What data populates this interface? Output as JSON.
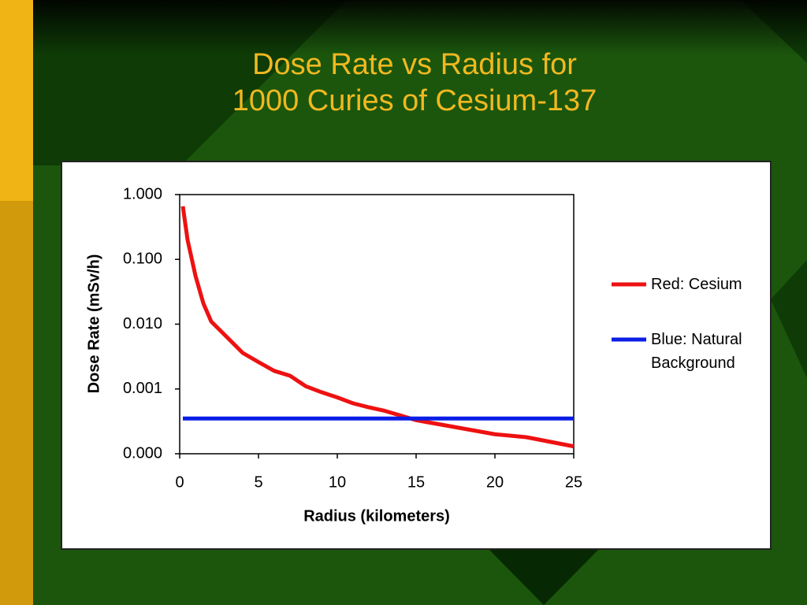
{
  "chart_data": {
    "type": "line",
    "title": [
      "Dose Rate vs Radius for",
      "1000 Curies of Cesium-137"
    ],
    "x_label": "Radius (kilometers)",
    "y_label": "Dose Rate (mSv/h)",
    "x": [
      0.2,
      0.5,
      1,
      1.5,
      2,
      3,
      4,
      5,
      6,
      7,
      8,
      9,
      10,
      11,
      12,
      13,
      14,
      15,
      17,
      20,
      22,
      25
    ],
    "series": [
      {
        "name": "Red: Cesium",
        "color": "#ee1111",
        "values": [
          0.66,
          0.2,
          0.056,
          0.021,
          0.011,
          0.0063,
          0.0036,
          0.0026,
          0.0019,
          0.0016,
          0.0011,
          0.00089,
          0.00074,
          0.0006,
          0.00052,
          0.00046,
          0.00039,
          0.00033,
          0.00027,
          0.0002,
          0.00018,
          0.00013
        ]
      },
      {
        "name": "Blue: Natural Background",
        "color": "#0a1ee6",
        "values": [
          0.00035,
          0.00035,
          0.00035,
          0.00035,
          0.00035,
          0.00035,
          0.00035,
          0.00035,
          0.00035,
          0.00035,
          0.00035,
          0.00035,
          0.00035,
          0.00035,
          0.00035,
          0.00035,
          0.00035,
          0.00035,
          0.00035,
          0.00035,
          0.00035,
          0.00035
        ]
      }
    ],
    "xlim": [
      0,
      25
    ],
    "xticks": [
      0,
      5,
      10,
      15,
      20,
      25
    ],
    "ylim": [
      0.0001,
      1
    ],
    "yscale": "log",
    "yticks": [
      {
        "value": 1,
        "label": "1.000"
      },
      {
        "value": 0.1,
        "label": "0.100"
      },
      {
        "value": 0.01,
        "label": "0.010"
      },
      {
        "value": 0.001,
        "label": "0.001"
      },
      {
        "value": 0.0001,
        "label": "0.000"
      }
    ],
    "grid": false,
    "legend": "right"
  }
}
